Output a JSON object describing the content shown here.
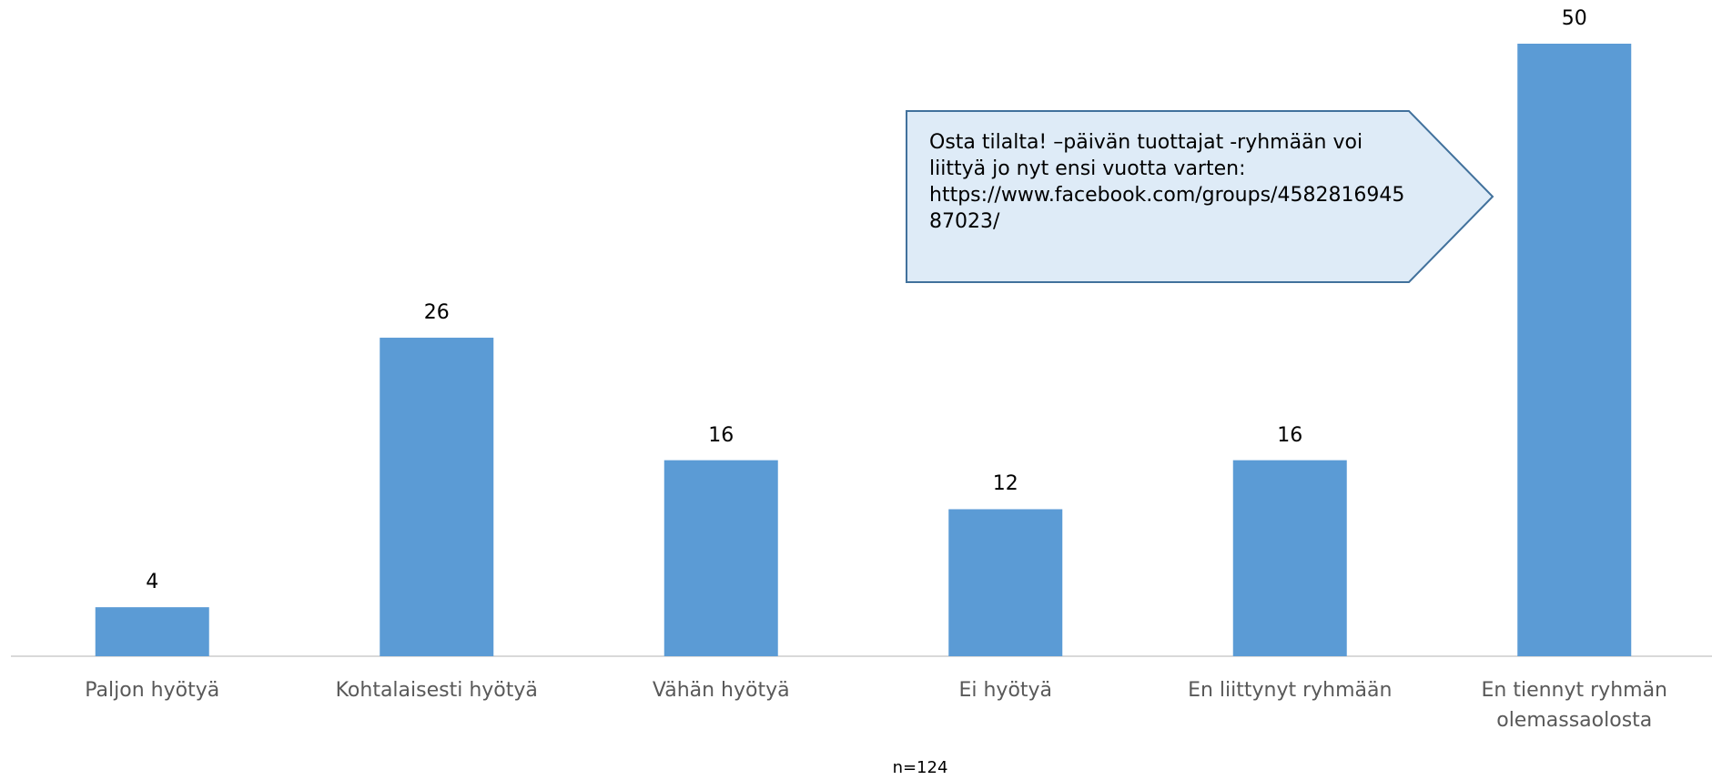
{
  "chart_data": {
    "type": "bar",
    "categories": [
      "Paljon hyötyä",
      "Kohtalaisesti hyötyä",
      "Vähän hyötyä",
      "Ei hyötyä",
      "En liittynyt ryhmään",
      "En tiennyt ryhmän olemassaolosta"
    ],
    "values": [
      4,
      26,
      16,
      12,
      16,
      50
    ],
    "color": "#5b9bd5",
    "ylim": [
      0,
      50
    ],
    "annotation": "Osta tilalta! –päivän tuottajat -ryhmään voi liittyä jo nyt ensi vuotta varten: https://www.facebook.com/groups/458281694587023/",
    "note": "n=124"
  }
}
